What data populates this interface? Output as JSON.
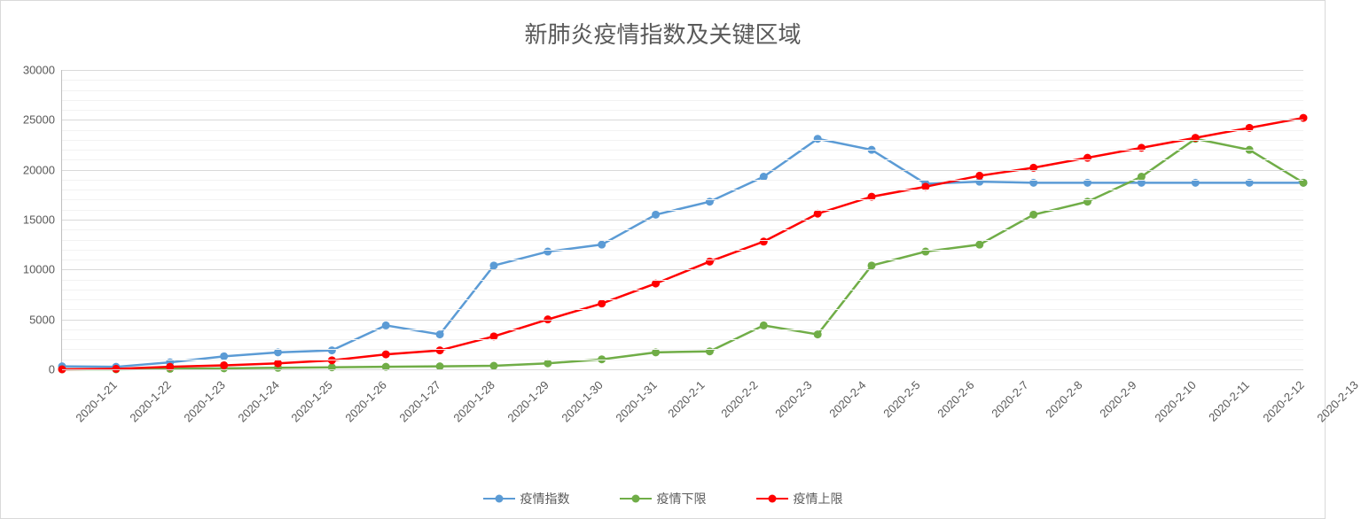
{
  "chart": {
    "type": "line",
    "title": "新肺炎疫情指数及关键区域",
    "title_fontsize": 26,
    "title_color": "#595959",
    "background_color": "#ffffff",
    "plot_background": "#ffffff",
    "grid_color_major": "#d9d9d9",
    "grid_color_minor": "#f2f2f2",
    "axis_color": "#bfbfbf",
    "tick_label_color": "#595959",
    "tick_label_fontsize": 13,
    "x_axis": {
      "categories": [
        "2020-1-21",
        "2020-1-22",
        "2020-1-23",
        "2020-1-24",
        "2020-1-25",
        "2020-1-26",
        "2020-1-27",
        "2020-1-28",
        "2020-1-29",
        "2020-1-30",
        "2020-1-31",
        "2020-2-1",
        "2020-2-2",
        "2020-2-3",
        "2020-2-4",
        "2020-2-5",
        "2020-2-6",
        "2020-2-7",
        "2020-2-8",
        "2020-2-9",
        "2020-2-10",
        "2020-2-11",
        "2020-2-12",
        "2020-2-13"
      ],
      "label_rotation": -45
    },
    "y_axis": {
      "min": 0,
      "max": 30000,
      "major_ticks": [
        0,
        5000,
        10000,
        15000,
        20000,
        25000,
        30000
      ],
      "minor_step": 1000
    },
    "series": [
      {
        "name": "疫情指数",
        "color": "#5b9bd5",
        "line_width": 2.5,
        "marker_size": 9,
        "values": [
          300,
          250,
          700,
          1300,
          1700,
          1900,
          4400,
          3500,
          10400,
          11800,
          12500,
          15500,
          16800,
          19300,
          23100,
          22000,
          18600,
          18800,
          18700,
          18700,
          18700,
          18700,
          18700,
          18700
        ]
      },
      {
        "name": "疫情下限",
        "color": "#70ad47",
        "line_width": 2.5,
        "marker_size": 9,
        "values": [
          0,
          0,
          50,
          100,
          150,
          200,
          250,
          300,
          350,
          600,
          1000,
          1700,
          1800,
          4400,
          3500,
          10400,
          11800,
          12500,
          15500,
          16800,
          19300,
          23100,
          22000,
          18700
        ]
      },
      {
        "name": "疫情上限",
        "color": "#ff0000",
        "line_width": 2.5,
        "marker_size": 9,
        "values": [
          0,
          50,
          250,
          400,
          600,
          900,
          1500,
          1900,
          3300,
          5000,
          6600,
          8600,
          10800,
          12800,
          15600,
          17300,
          18300,
          19400,
          20200,
          21200,
          22200,
          23200,
          24200,
          25200
        ]
      }
    ],
    "legend": {
      "position": "bottom",
      "fontsize": 14,
      "item_spacing": 56
    }
  }
}
